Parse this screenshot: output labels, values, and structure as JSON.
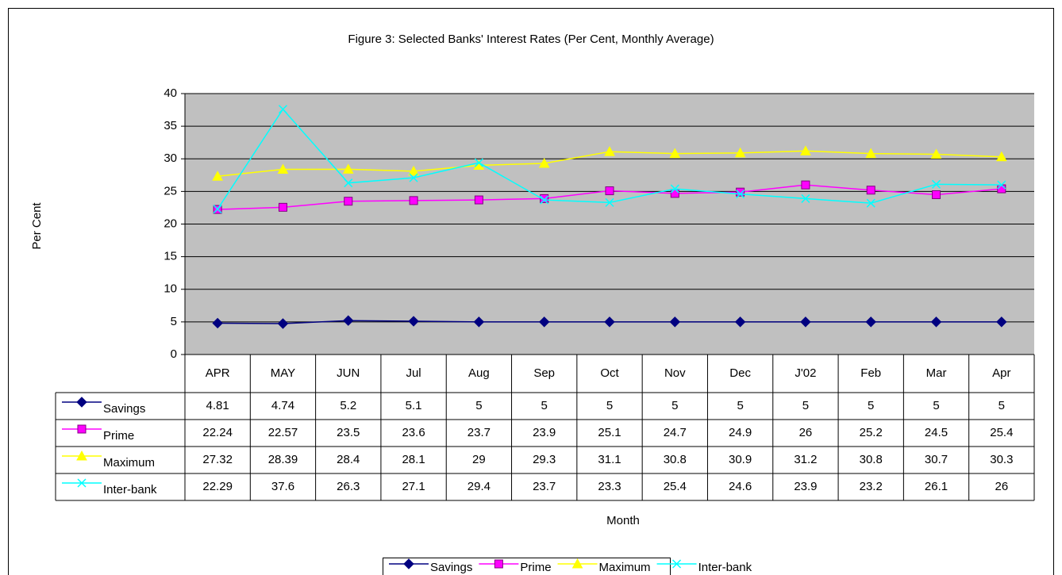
{
  "chart_data": {
    "type": "line",
    "title": "Figure 3: Selected Banks' Interest Rates (Per Cent, Monthly Average)",
    "y_label": "Per Cent",
    "x_label": "Month",
    "categories": [
      "APR",
      "MAY",
      "JUN",
      "Jul",
      "Aug",
      "Sep",
      "Oct",
      "Nov",
      "Dec",
      "J'02",
      "Feb",
      "Mar",
      "Apr"
    ],
    "series": [
      {
        "name": "Savings",
        "color": "#000080",
        "marker": "diamond",
        "values": [
          4.81,
          4.74,
          5.2,
          5.1,
          5,
          5,
          5,
          5,
          5,
          5,
          5,
          5,
          5
        ]
      },
      {
        "name": "Prime",
        "color": "#ff00ff",
        "marker": "square",
        "values": [
          22.24,
          22.57,
          23.5,
          23.6,
          23.7,
          23.9,
          25.1,
          24.7,
          24.9,
          26,
          25.2,
          24.5,
          25.4
        ]
      },
      {
        "name": "Maximum",
        "color": "#ffff00",
        "marker": "triangle",
        "values": [
          27.32,
          28.39,
          28.4,
          28.1,
          29,
          29.3,
          31.1,
          30.8,
          30.9,
          31.2,
          30.8,
          30.7,
          30.3
        ]
      },
      {
        "name": "Inter-bank",
        "color": "#00ffff",
        "marker": "x",
        "values": [
          22.29,
          37.6,
          26.3,
          27.1,
          29.4,
          23.7,
          23.3,
          25.4,
          24.6,
          23.9,
          23.2,
          26.1,
          26
        ]
      }
    ],
    "ylim": [
      0,
      40
    ],
    "yticks": [
      0,
      5,
      10,
      15,
      20,
      25,
      30,
      35,
      40
    ],
    "grid": true,
    "plot_background": "#c0c0c0",
    "legend": "bottom",
    "data_table": true
  }
}
